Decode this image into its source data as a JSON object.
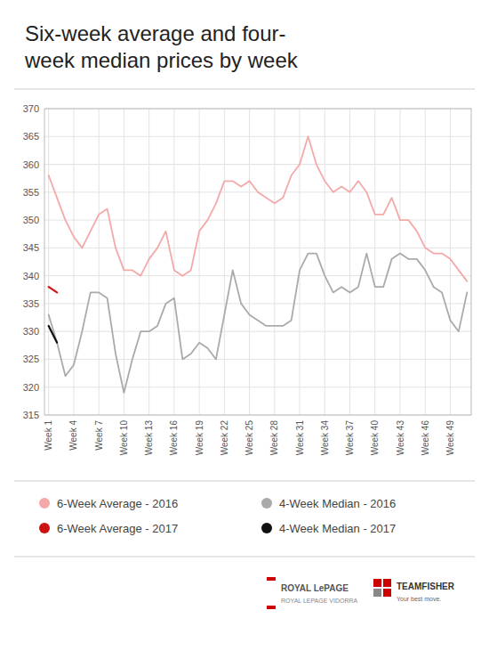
{
  "chart_data": {
    "type": "line",
    "title": "Six-week average and four-\nweek median prices by week",
    "xlim": [
      0.5,
      51.5
    ],
    "xticks": [
      {
        "value": 1,
        "label": "Week 1"
      },
      {
        "value": 4,
        "label": "Week 4"
      },
      {
        "value": 7,
        "label": "Week 7"
      },
      {
        "value": 10,
        "label": "Week 10"
      },
      {
        "value": 13,
        "label": "Week 13"
      },
      {
        "value": 16,
        "label": "Week 16"
      },
      {
        "value": 19,
        "label": "Week 19"
      },
      {
        "value": 22,
        "label": "Week 22"
      },
      {
        "value": 25,
        "label": "Week 25"
      },
      {
        "value": 28,
        "label": "Week 28"
      },
      {
        "value": 31,
        "label": "Week 31"
      },
      {
        "value": 34,
        "label": "Week 34"
      },
      {
        "value": 37,
        "label": "Week 37"
      },
      {
        "value": 40,
        "label": "Week 40"
      },
      {
        "value": 43,
        "label": "Week 43"
      },
      {
        "value": 46,
        "label": "Week 46"
      },
      {
        "value": 49,
        "label": "Week 49"
      }
    ],
    "ylim": [
      315,
      370
    ],
    "yticks": [
      315,
      320,
      325,
      330,
      335,
      340,
      345,
      350,
      355,
      360,
      365,
      370
    ],
    "grid": true,
    "legend": "bottom",
    "series": [
      {
        "name": "6-Week Average - 2016",
        "color": "#f4a9a8",
        "x": [
          1,
          2,
          3,
          4,
          5,
          6,
          7,
          8,
          9,
          10,
          11,
          12,
          13,
          14,
          15,
          16,
          17,
          18,
          19,
          20,
          21,
          22,
          23,
          24,
          25,
          26,
          27,
          28,
          29,
          30,
          31,
          32,
          33,
          34,
          35,
          36,
          37,
          38,
          39,
          40,
          41,
          42,
          43,
          44,
          45,
          46,
          47,
          48,
          49,
          50,
          51
        ],
        "values": [
          358,
          354,
          350,
          347,
          345,
          348,
          351,
          352,
          345,
          341,
          341,
          340,
          343,
          345,
          348,
          341,
          340,
          341,
          348,
          350,
          353,
          357,
          357,
          356,
          357,
          355,
          354,
          353,
          354,
          358,
          360,
          365,
          360,
          357,
          355,
          356,
          355,
          357,
          355,
          351,
          351,
          354,
          350,
          350,
          348,
          345,
          344,
          344,
          343,
          341,
          339
        ]
      },
      {
        "name": "4-Week Median - 2016",
        "color": "#aaaaaa",
        "x": [
          1,
          2,
          3,
          4,
          5,
          6,
          7,
          8,
          9,
          10,
          11,
          12,
          13,
          14,
          15,
          16,
          17,
          18,
          19,
          20,
          21,
          22,
          23,
          24,
          25,
          26,
          27,
          28,
          29,
          30,
          31,
          32,
          33,
          34,
          35,
          36,
          37,
          38,
          39,
          40,
          41,
          42,
          43,
          44,
          45,
          46,
          47,
          48,
          49,
          50,
          51
        ],
        "values": [
          333,
          328,
          322,
          324,
          330,
          337,
          337,
          336,
          326,
          319,
          325,
          330,
          330,
          331,
          335,
          336,
          325,
          326,
          328,
          327,
          325,
          333,
          341,
          335,
          333,
          332,
          331,
          331,
          331,
          332,
          341,
          344,
          344,
          340,
          337,
          338,
          337,
          338,
          344,
          338,
          338,
          343,
          344,
          343,
          343,
          341,
          338,
          337,
          332,
          330,
          337
        ]
      },
      {
        "name": "6-Week Average - 2017",
        "color": "#cc1111",
        "x": [
          1,
          2
        ],
        "values": [
          338,
          337
        ]
      },
      {
        "name": "4-Week Median - 2017",
        "color": "#111111",
        "x": [
          1,
          2
        ],
        "values": [
          331,
          328
        ]
      }
    ],
    "annotations": [
      "ROYAL LePAGE",
      "ROYAL LEPAGE VIDORRA",
      "TEAMFISHER",
      "Your best move."
    ]
  }
}
